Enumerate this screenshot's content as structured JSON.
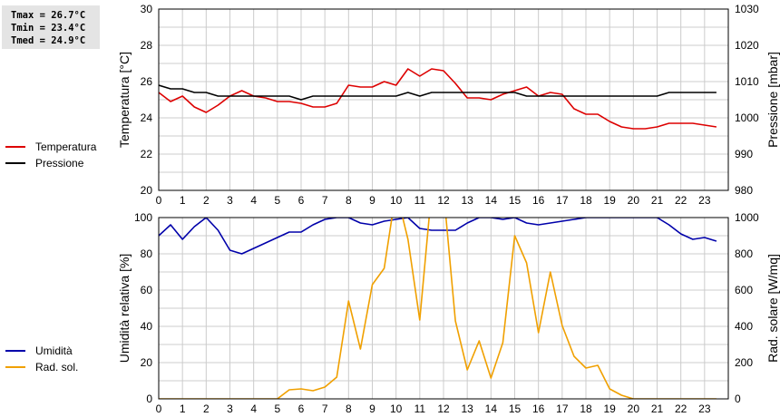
{
  "stats": {
    "tmax": "Tmax = 26.7°C",
    "tmin": "Tmin = 23.4°C",
    "tmed": "Tmed = 24.9°C"
  },
  "legends": {
    "top": [
      {
        "label": "Temperatura",
        "color": "#dd0000"
      },
      {
        "label": "Pressione",
        "color": "#000000"
      }
    ],
    "bottom": [
      {
        "label": "Umidità",
        "color": "#0000aa"
      },
      {
        "label": "Rad. sol.",
        "color": "#f0a000"
      }
    ]
  },
  "chart_data": [
    {
      "type": "line",
      "ylabel": "Temperatura [°C]",
      "y2label": "Pressione [mbar]",
      "xlim": [
        0,
        24
      ],
      "ylim": [
        20,
        30
      ],
      "y2lim": [
        980,
        1030
      ],
      "xticks": [
        0,
        1,
        2,
        3,
        4,
        5,
        6,
        7,
        8,
        9,
        10,
        11,
        12,
        13,
        14,
        15,
        16,
        17,
        18,
        19,
        20,
        21,
        22,
        23
      ],
      "yticks": [
        20,
        22,
        24,
        26,
        28,
        30
      ],
      "y2ticks": [
        980,
        990,
        1000,
        1010,
        1020,
        1030
      ],
      "grid": true,
      "series": [
        {
          "name": "Temperatura",
          "axis": "left",
          "color": "#dd0000",
          "x": [
            0,
            0.5,
            1,
            1.5,
            2,
            2.5,
            3,
            3.5,
            4,
            4.5,
            5,
            5.5,
            6,
            6.5,
            7,
            7.5,
            8,
            8.5,
            9,
            9.5,
            10,
            10.5,
            11,
            11.5,
            12,
            12.5,
            13,
            13.5,
            14,
            14.5,
            15,
            15.5,
            16,
            16.5,
            17,
            17.5,
            18,
            18.5,
            19,
            19.5,
            20,
            20.5,
            21,
            21.5,
            22,
            22.5,
            23,
            23.5
          ],
          "values": [
            25.4,
            24.9,
            25.2,
            24.6,
            24.3,
            24.7,
            25.2,
            25.5,
            25.2,
            25.1,
            24.9,
            24.9,
            24.8,
            24.6,
            24.6,
            24.8,
            25.8,
            25.7,
            25.7,
            26.0,
            25.8,
            26.7,
            26.3,
            26.7,
            26.6,
            25.9,
            25.1,
            25.1,
            25.0,
            25.3,
            25.5,
            25.7,
            25.2,
            25.4,
            25.3,
            24.5,
            24.2,
            24.2,
            23.8,
            23.5,
            23.4,
            23.4,
            23.5,
            23.7,
            23.7,
            23.7,
            23.6,
            23.5
          ]
        },
        {
          "name": "Pressione",
          "axis": "right",
          "color": "#000000",
          "x": [
            0,
            0.5,
            1,
            1.5,
            2,
            2.5,
            3,
            3.5,
            4,
            4.5,
            5,
            5.5,
            6,
            6.5,
            7,
            7.5,
            8,
            8.5,
            9,
            9.5,
            10,
            10.5,
            11,
            11.5,
            12,
            12.5,
            13,
            13.5,
            14,
            14.5,
            15,
            15.5,
            16,
            16.5,
            17,
            17.5,
            18,
            18.5,
            19,
            19.5,
            20,
            20.5,
            21,
            21.5,
            22,
            22.5,
            23,
            23.5
          ],
          "values": [
            1009,
            1008,
            1008,
            1007,
            1007,
            1006,
            1006,
            1006,
            1006,
            1006,
            1006,
            1006,
            1005,
            1006,
            1006,
            1006,
            1006,
            1006,
            1006,
            1006,
            1006,
            1007,
            1006,
            1007,
            1007,
            1007,
            1007,
            1007,
            1007,
            1007,
            1007,
            1006,
            1006,
            1006,
            1006,
            1006,
            1006,
            1006,
            1006,
            1006,
            1006,
            1006,
            1006,
            1007,
            1007,
            1007,
            1007,
            1007
          ]
        }
      ]
    },
    {
      "type": "line",
      "ylabel": "Umidità relativa [%]",
      "y2label": "Rad. solare [W/mq]",
      "xlim": [
        0,
        24
      ],
      "ylim": [
        0,
        100
      ],
      "y2lim": [
        0,
        1000
      ],
      "xticks": [
        0,
        1,
        2,
        3,
        4,
        5,
        6,
        7,
        8,
        9,
        10,
        11,
        12,
        13,
        14,
        15,
        16,
        17,
        18,
        19,
        20,
        21,
        22,
        23
      ],
      "yticks": [
        0,
        20,
        40,
        60,
        80,
        100
      ],
      "y2ticks": [
        0,
        200,
        400,
        600,
        800,
        1000
      ],
      "grid": true,
      "series": [
        {
          "name": "Umidità",
          "axis": "left",
          "color": "#0000aa",
          "x": [
            0,
            0.5,
            1,
            1.5,
            2,
            2.5,
            3,
            3.5,
            4,
            4.5,
            5,
            5.5,
            6,
            6.5,
            7,
            7.5,
            8,
            8.5,
            9,
            9.5,
            10,
            10.5,
            11,
            11.5,
            12,
            12.5,
            13,
            13.5,
            14,
            14.5,
            15,
            15.5,
            16,
            16.5,
            17,
            17.5,
            18,
            18.5,
            19,
            19.5,
            20,
            20.5,
            21,
            21.5,
            22,
            22.5,
            23,
            23.5
          ],
          "values": [
            90,
            96,
            88,
            95,
            100,
            93,
            82,
            80,
            83,
            86,
            89,
            92,
            92,
            96,
            99,
            100,
            100,
            97,
            96,
            98,
            99,
            100,
            94,
            93,
            93,
            93,
            97,
            100,
            100,
            99,
            100,
            97,
            96,
            97,
            98,
            99,
            100,
            100,
            100,
            100,
            100,
            100,
            100,
            96,
            91,
            88,
            89,
            87
          ]
        },
        {
          "name": "Rad. sol.",
          "axis": "right",
          "color": "#f0a000",
          "x": [
            0,
            0.5,
            1,
            1.5,
            2,
            2.5,
            3,
            3.5,
            4,
            4.5,
            5,
            5.5,
            6,
            6.5,
            7,
            7.5,
            8,
            8.5,
            9,
            9.5,
            10,
            10.5,
            11,
            11.5,
            12,
            12.5,
            13,
            13.5,
            14,
            14.5,
            15,
            15.5,
            16,
            16.5,
            17,
            17.5,
            18,
            18.5,
            19,
            19.5,
            20,
            20.5,
            21,
            21.5,
            22,
            22.5,
            23,
            23.5
          ],
          "values": [
            0,
            0,
            0,
            0,
            0,
            0,
            0,
            0,
            0,
            0,
            0,
            50,
            55,
            45,
            65,
            120,
            540,
            275,
            630,
            720,
            1150,
            880,
            435,
            1150,
            1150,
            430,
            160,
            320,
            115,
            310,
            900,
            750,
            365,
            700,
            405,
            235,
            170,
            185,
            55,
            20,
            0,
            0,
            0,
            0,
            0,
            0,
            0,
            0
          ]
        }
      ]
    }
  ]
}
